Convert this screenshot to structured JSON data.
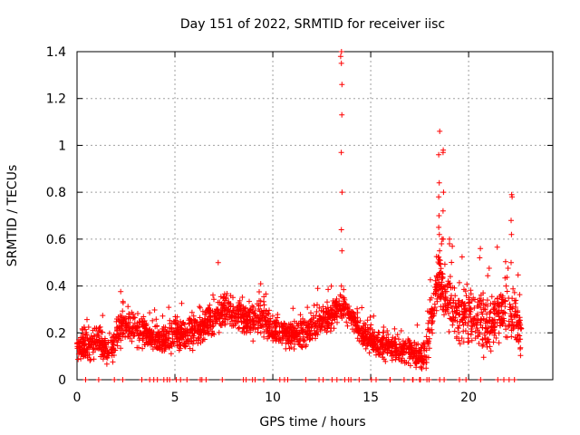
{
  "chart_data": {
    "type": "scatter",
    "title": "Day 151 of 2022, SRMTID for receiver iisc",
    "xlabel": "GPS time / hours",
    "ylabel": "SRMTID / TECUs",
    "xlim": [
      0,
      24.3
    ],
    "ylim": [
      0,
      1.4
    ],
    "grid": true,
    "x_ticks": [
      "0",
      "5",
      "10",
      "15",
      "20"
    ],
    "y_ticks": [
      "0",
      "0.2",
      "0.4",
      "0.6",
      "0.8",
      "1",
      "1.2",
      "1.4"
    ],
    "marker": "+",
    "marker_color": "#ff0000",
    "series": [
      {
        "name": "SRMTID",
        "segments": [
          {
            "t": [
              0.0,
              0.5,
              1.0,
              1.5,
              2.0
            ],
            "v": [
              0.14,
              0.15,
              0.17,
              0.13,
              0.15
            ],
            "spread": 0.05
          },
          {
            "t": [
              2.0,
              2.4,
              3.0,
              3.5,
              4.0,
              4.5,
              5.0,
              5.5,
              6.0,
              6.5,
              7.0,
              7.5,
              8.0,
              8.5,
              9.0,
              9.5,
              10.0,
              10.5,
              11.0,
              11.5,
              12.0,
              12.5,
              13.0,
              13.4
            ],
            "v": [
              0.2,
              0.24,
              0.21,
              0.2,
              0.18,
              0.17,
              0.19,
              0.2,
              0.22,
              0.24,
              0.27,
              0.3,
              0.28,
              0.26,
              0.25,
              0.27,
              0.22,
              0.2,
              0.19,
              0.2,
              0.22,
              0.25,
              0.27,
              0.3
            ],
            "spread": 0.05
          },
          {
            "t": [
              13.4,
              13.6,
              14.0,
              14.5,
              15.0,
              15.5,
              16.0,
              16.5,
              17.0,
              17.5,
              17.9
            ],
            "v": [
              0.32,
              0.3,
              0.26,
              0.2,
              0.17,
              0.15,
              0.14,
              0.13,
              0.12,
              0.1,
              0.11
            ],
            "spread": 0.04
          },
          {
            "t": [
              17.9,
              18.2,
              18.5,
              18.8,
              19.2,
              19.6,
              20.0,
              20.5,
              21.0,
              21.5,
              22.0,
              22.4,
              22.7
            ],
            "v": [
              0.2,
              0.3,
              0.45,
              0.35,
              0.3,
              0.28,
              0.3,
              0.25,
              0.24,
              0.27,
              0.3,
              0.26,
              0.15
            ],
            "spread": 0.09
          }
        ],
        "spikes": [
          {
            "t": 13.5,
            "v": [
              0.4,
              0.55,
              0.64,
              0.8,
              0.97,
              1.13,
              1.26,
              1.35,
              1.38,
              1.4
            ]
          },
          {
            "t": 18.5,
            "v": [
              0.55,
              0.62,
              0.65,
              0.7,
              0.78,
              0.84,
              0.96,
              1.06
            ]
          },
          {
            "t": 18.7,
            "v": [
              0.6,
              0.72,
              0.8,
              0.97,
              0.98
            ]
          },
          {
            "t": 22.2,
            "v": [
              0.5,
              0.62,
              0.68,
              0.78,
              0.79
            ]
          },
          {
            "t": 7.2,
            "v": [
              0.5
            ]
          },
          {
            "t": 19.0,
            "v": [
              0.58,
              0.6
            ]
          },
          {
            "t": 20.6,
            "v": [
              0.52,
              0.56
            ]
          }
        ],
        "zero_count": 55
      }
    ]
  }
}
